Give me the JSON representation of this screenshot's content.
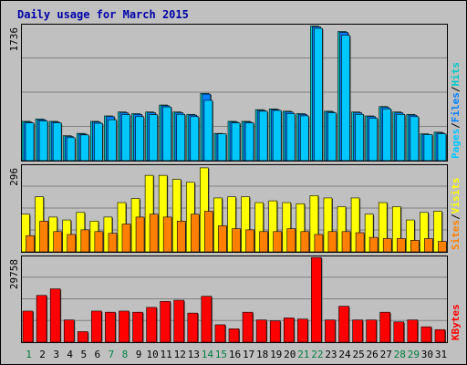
{
  "title": "Daily usage for March 2015",
  "colors": {
    "hits": "#00c8c8",
    "files": "#0080ff",
    "pages": "#00c8ff",
    "visits": "#ffff00",
    "sites": "#ff8000",
    "kbytes": "#ff0000",
    "weekend_label": "#008040",
    "weekday_label": "#000000"
  },
  "chart_data": [
    {
      "type": "bar",
      "name": "hits-files-pages",
      "ymax_label": "1736",
      "ylim": [
        0,
        1736
      ],
      "legend": [
        {
          "key": "pages",
          "label": "Pages"
        },
        {
          "key": "sep",
          "label": "/"
        },
        {
          "key": "files",
          "label": "Files"
        },
        {
          "key": "sep",
          "label": "/"
        },
        {
          "key": "hits",
          "label": "Hits"
        }
      ],
      "categories": [
        "1",
        "2",
        "3",
        "4",
        "5",
        "6",
        "7",
        "8",
        "9",
        "10",
        "11",
        "12",
        "13",
        "14",
        "15",
        "16",
        "17",
        "18",
        "19",
        "20",
        "21",
        "22",
        "23",
        "24",
        "25",
        "26",
        "27",
        "28",
        "29",
        "30",
        "31"
      ],
      "series": [
        {
          "name": "Hits",
          "values": [
            505,
            535,
            505,
            320,
            350,
            505,
            575,
            625,
            605,
            625,
            715,
            625,
            595,
            865,
            350,
            505,
            505,
            655,
            665,
            635,
            605,
            1730,
            635,
            1660,
            625,
            575,
            695,
            625,
            595,
            345,
            365
          ]
        },
        {
          "name": "Files",
          "values": [
            495,
            525,
            495,
            310,
            340,
            495,
            565,
            615,
            595,
            615,
            705,
            615,
            585,
            855,
            340,
            495,
            495,
            645,
            655,
            625,
            595,
            1720,
            625,
            1650,
            615,
            565,
            685,
            615,
            585,
            335,
            355
          ]
        },
        {
          "name": "Pages",
          "values": [
            485,
            510,
            485,
            295,
            330,
            480,
            525,
            590,
            565,
            590,
            690,
            595,
            565,
            775,
            345,
            485,
            485,
            635,
            645,
            605,
            575,
            1700,
            615,
            1610,
            595,
            545,
            665,
            595,
            565,
            335,
            345
          ]
        }
      ]
    },
    {
      "type": "bar",
      "name": "visits-sites",
      "ymax_label": "296",
      "ylim": [
        0,
        296
      ],
      "legend": [
        {
          "key": "sites",
          "label": "Sites"
        },
        {
          "key": "sep",
          "label": "/"
        },
        {
          "key": "visits",
          "label": "Visits"
        }
      ],
      "categories": [
        "1",
        "2",
        "3",
        "4",
        "5",
        "6",
        "7",
        "8",
        "9",
        "10",
        "11",
        "12",
        "13",
        "14",
        "15",
        "16",
        "17",
        "18",
        "19",
        "20",
        "21",
        "22",
        "23",
        "24",
        "25",
        "26",
        "27",
        "28",
        "29",
        "30",
        "31"
      ],
      "series": [
        {
          "name": "Visits",
          "values": [
            130,
            190,
            120,
            110,
            136,
            106,
            120,
            170,
            184,
            264,
            264,
            250,
            240,
            290,
            186,
            190,
            190,
            170,
            176,
            170,
            166,
            194,
            186,
            156,
            186,
            130,
            170,
            156,
            110,
            136,
            140
          ]
        },
        {
          "name": "Sites",
          "values": [
            56,
            106,
            70,
            60,
            76,
            70,
            64,
            96,
            120,
            130,
            120,
            106,
            130,
            140,
            90,
            80,
            76,
            70,
            70,
            80,
            70,
            60,
            70,
            70,
            66,
            50,
            46,
            46,
            40,
            46,
            36
          ]
        }
      ]
    },
    {
      "type": "bar",
      "name": "kbytes",
      "ymax_label": "29758",
      "ylim": [
        0,
        29758
      ],
      "legend": [
        {
          "key": "kbytes",
          "label": "KBytes"
        }
      ],
      "categories": [
        "1",
        "2",
        "3",
        "4",
        "5",
        "6",
        "7",
        "8",
        "9",
        "10",
        "11",
        "12",
        "13",
        "14",
        "15",
        "16",
        "17",
        "18",
        "19",
        "20",
        "21",
        "22",
        "23",
        "24",
        "25",
        "26",
        "27",
        "28",
        "29",
        "30",
        "31"
      ],
      "series": [
        {
          "name": "KBytes",
          "values": [
            10900,
            16400,
            18700,
            7800,
            3700,
            10900,
            10500,
            10900,
            10500,
            12200,
            14300,
            14700,
            10200,
            16100,
            6100,
            4700,
            10500,
            7800,
            7500,
            8500,
            8100,
            29700,
            7800,
            12600,
            7800,
            7800,
            10500,
            7100,
            7800,
            5400,
            4400
          ]
        }
      ]
    }
  ]
}
